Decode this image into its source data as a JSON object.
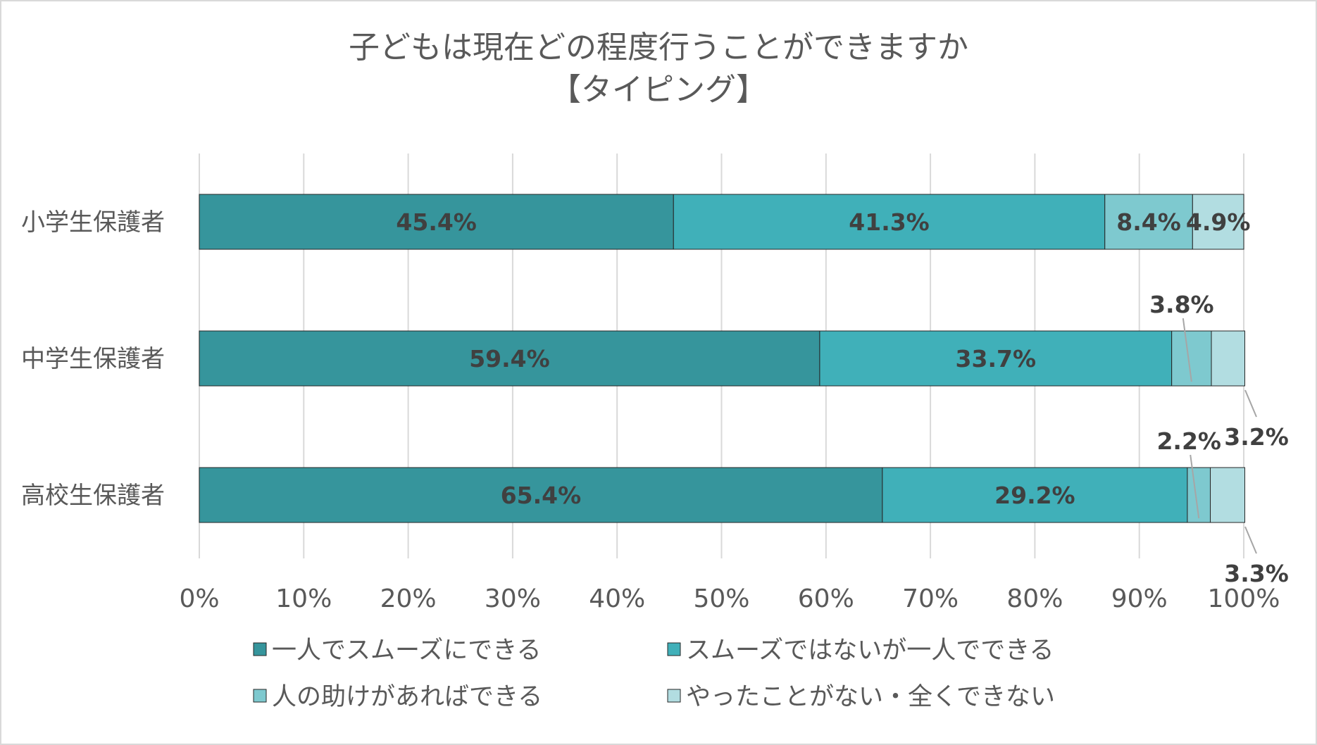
{
  "chart_data": {
    "type": "bar",
    "orientation": "horizontal",
    "stacked": "percent",
    "title": "子どもは現在どの程度行うことができますか",
    "subtitle": "【タイピング】",
    "categories": [
      "小学生保護者",
      "中学生保護者",
      "高校生保護者"
    ],
    "series": [
      {
        "name": "一人でスムーズにできる",
        "color": "#36959c",
        "values": [
          45.4,
          59.4,
          65.4
        ],
        "labels": [
          "45.4%",
          "59.4%",
          "65.4%"
        ]
      },
      {
        "name": "スムーズではないが一人でできる",
        "color": "#40b0b9",
        "values": [
          41.3,
          33.7,
          29.2
        ],
        "labels": [
          "41.3%",
          "33.7%",
          "29.2%"
        ]
      },
      {
        "name": "人の助けがあればできる",
        "color": "#7ec9cf",
        "values": [
          8.4,
          3.8,
          2.2
        ],
        "labels": [
          "8.4%",
          "3.8%",
          "2.2%"
        ]
      },
      {
        "name": "やったことがない・全くできない",
        "color": "#b2dde1",
        "values": [
          4.9,
          3.2,
          3.3
        ],
        "labels": [
          "4.9%",
          "3.2%",
          "3.3%"
        ]
      }
    ],
    "x_ticks": [
      "0%",
      "10%",
      "20%",
      "30%",
      "40%",
      "50%",
      "60%",
      "70%",
      "80%",
      "90%",
      "100%"
    ],
    "xlim": [
      0,
      100
    ],
    "grid": true,
    "legend_position": "bottom"
  }
}
